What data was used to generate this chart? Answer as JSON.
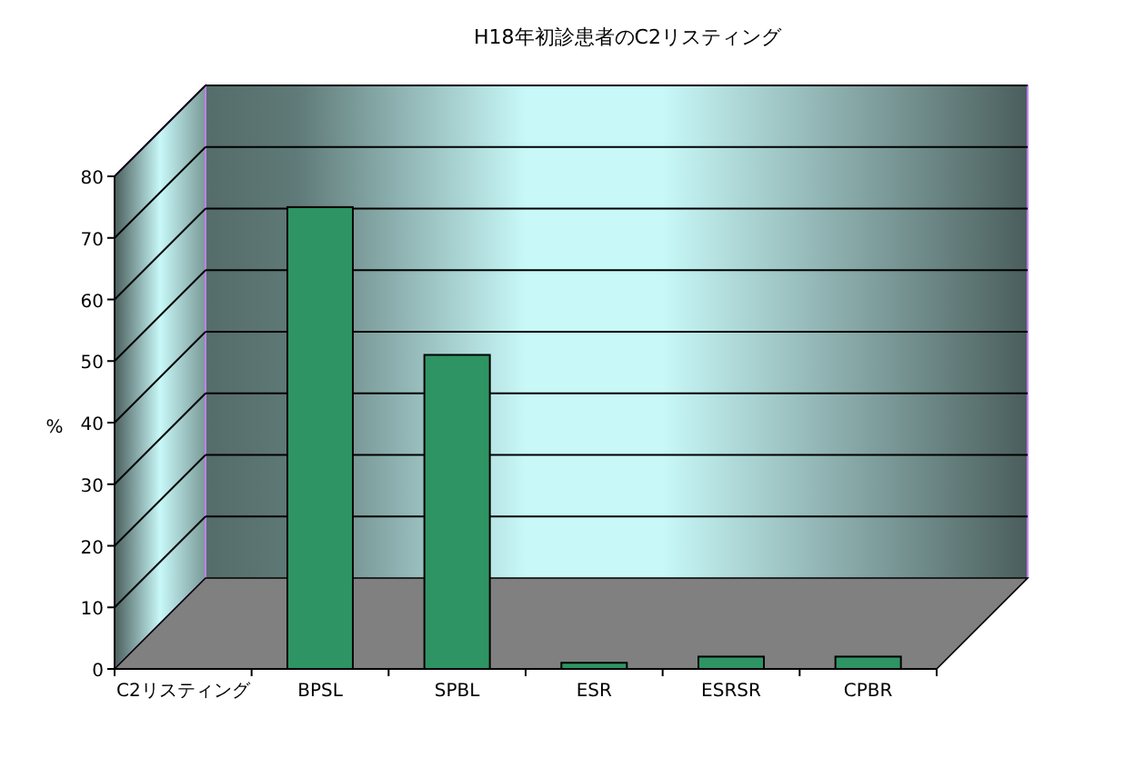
{
  "chart_data": {
    "type": "bar",
    "title": "H18年初診患者のC2リスティング",
    "ylabel": "%",
    "categories": [
      "C2リスティング",
      "BPSL",
      "SPBL",
      "ESR",
      "ESRSR",
      "CPBR"
    ],
    "values": [
      null,
      75,
      51,
      1,
      2,
      2
    ],
    "color": "#2e9464",
    "ylim": [
      0,
      80
    ],
    "yticks": [
      0,
      10,
      20,
      30,
      40,
      50,
      60,
      70,
      80
    ],
    "grid": "y"
  }
}
